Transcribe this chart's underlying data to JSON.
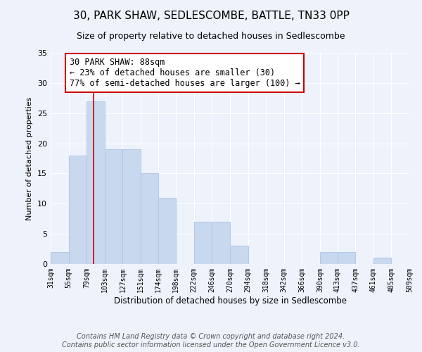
{
  "title": "30, PARK SHAW, SEDLESCOMBE, BATTLE, TN33 0PP",
  "subtitle": "Size of property relative to detached houses in Sedlescombe",
  "xlabel": "Distribution of detached houses by size in Sedlescombe",
  "ylabel": "Number of detached properties",
  "bin_edges": [
    31,
    55,
    79,
    103,
    127,
    151,
    174,
    198,
    222,
    246,
    270,
    294,
    318,
    342,
    366,
    390,
    413,
    437,
    461,
    485,
    509
  ],
  "counts": [
    2,
    18,
    27,
    19,
    19,
    15,
    11,
    0,
    7,
    7,
    3,
    0,
    0,
    0,
    0,
    2,
    2,
    0,
    1,
    0
  ],
  "bar_color": "#c8d8ee",
  "bar_edge_color": "#b0c8e8",
  "vline_x": 88,
  "vline_color": "#cc0000",
  "annotation_text": "30 PARK SHAW: 88sqm\n← 23% of detached houses are smaller (30)\n77% of semi-detached houses are larger (100) →",
  "annotation_box_color": "#ffffff",
  "annotation_box_edge_color": "#cc0000",
  "ylim": [
    0,
    35
  ],
  "yticks": [
    0,
    5,
    10,
    15,
    20,
    25,
    30,
    35
  ],
  "tick_labels": [
    "31sqm",
    "55sqm",
    "79sqm",
    "103sqm",
    "127sqm",
    "151sqm",
    "174sqm",
    "198sqm",
    "222sqm",
    "246sqm",
    "270sqm",
    "294sqm",
    "318sqm",
    "342sqm",
    "366sqm",
    "390sqm",
    "413sqm",
    "437sqm",
    "461sqm",
    "485sqm",
    "509sqm"
  ],
  "footer_line1": "Contains HM Land Registry data © Crown copyright and database right 2024.",
  "footer_line2": "Contains public sector information licensed under the Open Government Licence v3.0.",
  "background_color": "#eef2fb",
  "grid_color": "#ffffff",
  "title_fontsize": 11,
  "subtitle_fontsize": 9,
  "annotation_fontsize": 8.5,
  "ylabel_fontsize": 8,
  "xlabel_fontsize": 8.5,
  "footer_fontsize": 7,
  "ytick_fontsize": 8,
  "xtick_fontsize": 7
}
